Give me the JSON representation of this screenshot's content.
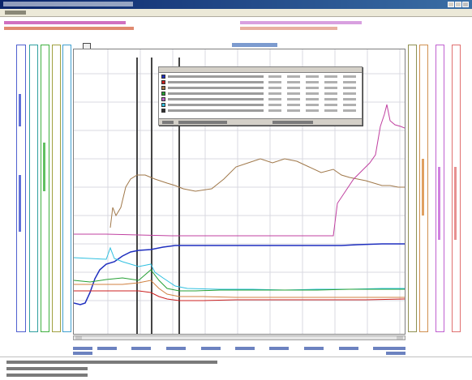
{
  "window": {
    "title": "",
    "menu": "",
    "controls": [
      "minimize",
      "maximize",
      "close"
    ]
  },
  "header": {
    "left_lines": [
      "",
      ""
    ],
    "right_lines": [
      "",
      ""
    ]
  },
  "plot": {
    "title": "",
    "tab_icon": "trend-icon",
    "gridlines": "on",
    "cursor_lines": 3
  },
  "legend": {
    "columns": [
      "",
      "",
      "",
      "",
      "",
      ""
    ],
    "rows": [
      {
        "color": "#1f2fbf",
        "label": "",
        "cells": [
          "",
          "",
          "",
          "",
          ""
        ]
      },
      {
        "color": "#cc2020",
        "label": "",
        "cells": [
          "",
          "",
          "",
          "",
          ""
        ]
      },
      {
        "color": "#a0784a",
        "label": "",
        "cells": [
          "",
          "",
          "",
          "",
          ""
        ]
      },
      {
        "color": "#25a035",
        "label": "",
        "cells": [
          "",
          "",
          "",
          "",
          ""
        ]
      },
      {
        "color": "#c060d0",
        "label": "",
        "cells": [
          "",
          "",
          "",
          "",
          ""
        ]
      },
      {
        "color": "#30c0e0",
        "label": "",
        "cells": [
          "",
          "",
          "",
          "",
          ""
        ]
      },
      {
        "color": "#333333",
        "label": "",
        "cells": [
          "",
          "",
          "",
          "",
          ""
        ]
      }
    ],
    "time_label": "",
    "time_value": ""
  },
  "status": {
    "lines": [
      "",
      "",
      ""
    ]
  },
  "colors": {
    "blue": "#1f2fbf",
    "red": "#cc2020",
    "brown": "#a0784a",
    "green": "#25a035",
    "purple": "#c060d0",
    "cyan": "#30c0e0",
    "magenta": "#c040a0",
    "orange": "#d08040"
  }
}
